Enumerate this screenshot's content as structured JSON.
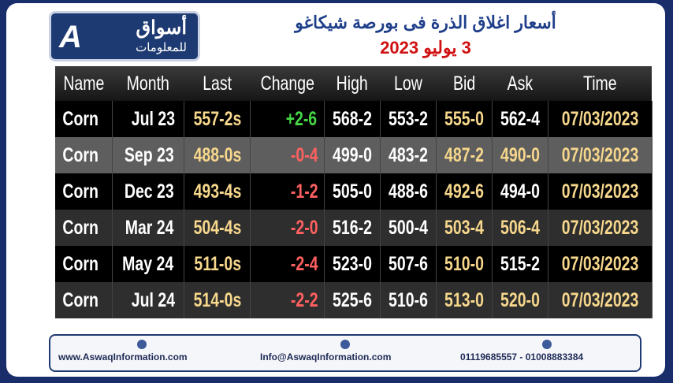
{
  "header": {
    "logo": {
      "line1": "أسواق",
      "line2": "للمعلومات"
    },
    "title": "أسعار اغلاق الذرة فى بورصة شيكاغو",
    "subtitle": "3 يوليو 2023"
  },
  "table": {
    "columns": [
      "Name",
      "Month",
      "Last",
      "Change",
      "High",
      "Low",
      "Bid",
      "Ask",
      "Time"
    ],
    "rows": [
      [
        "Corn",
        "Jul 23",
        "557-2s",
        "+2-6",
        "568-2",
        "553-2",
        "555-0",
        "562-4",
        "07/03/2023"
      ],
      [
        "Corn",
        "Sep 23",
        "488-0s",
        "-0-4",
        "499-0",
        "483-2",
        "487-2",
        "490-0",
        "07/03/2023"
      ],
      [
        "Corn",
        "Dec 23",
        "493-4s",
        "-1-2",
        "505-0",
        "488-6",
        "492-6",
        "494-0",
        "07/03/2023"
      ],
      [
        "Corn",
        "Mar 24",
        "504-4s",
        "-2-0",
        "516-2",
        "500-4",
        "503-4",
        "506-4",
        "07/03/2023"
      ],
      [
        "Corn",
        "May 24",
        "511-0s",
        "-2-4",
        "523-0",
        "507-6",
        "510-0",
        "515-2",
        "07/03/2023"
      ],
      [
        "Corn",
        "Jul 24",
        "514-0s",
        "-2-2",
        "525-6",
        "510-6",
        "513-0",
        "520-0",
        "07/03/2023"
      ]
    ]
  },
  "footer": {
    "website": "www.AswaqInformation.com",
    "email": "Info@AswaqInformation.com",
    "phone": "01119685557 - 01008883384"
  }
}
